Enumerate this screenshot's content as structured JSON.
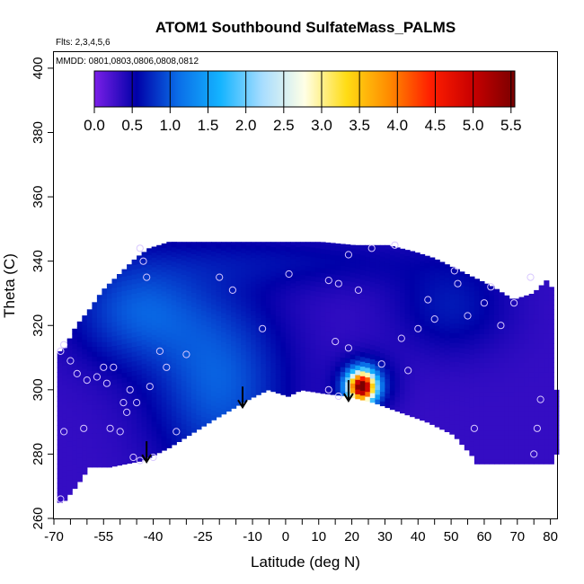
{
  "chart_data": {
    "type": "heatmap",
    "title": "ATOM1 Southbound SulfateMass_PALMS",
    "subtitle_flights": "Flts: 2,3,4,5,6",
    "subtitle_dates": "MMDD: 0801,0803,0806,0808,0812",
    "xlabel": "Latitude (deg N)",
    "ylabel": "Theta (C)",
    "xlim": [
      -70,
      82
    ],
    "ylim": [
      260,
      405
    ],
    "x_tick_labels": [
      "-70",
      "-55",
      "-40",
      "-25",
      "-10",
      "0",
      "10",
      "20",
      "30",
      "40",
      "50",
      "60",
      "70",
      "80"
    ],
    "x_tick_values": [
      -70,
      -55,
      -40,
      -25,
      -10,
      0,
      10,
      20,
      30,
      40,
      50,
      60,
      70,
      80
    ],
    "x_minor_ticks": [
      -65,
      -60,
      -50,
      -45,
      -35,
      -30,
      -20,
      -15,
      -5,
      5,
      15,
      25,
      35,
      45,
      55,
      65,
      75
    ],
    "y_ticks": [
      260,
      280,
      300,
      320,
      340,
      360,
      380,
      400
    ],
    "colorbar": {
      "ticks": [
        "0.0",
        "0.5",
        "1.0",
        "1.5",
        "2.0",
        "2.5",
        "3.0",
        "3.5",
        "4.0",
        "4.5",
        "5.0",
        "5.5"
      ],
      "range": [
        0,
        5.55
      ],
      "colors": [
        "#7b1fe8",
        "#0000a8",
        "#0a6ee8",
        "#14b4ff",
        "#a8ddff",
        "#ffffe6",
        "#ffdc14",
        "#ff8c00",
        "#ff1e00",
        "#c80000",
        "#7a0000"
      ]
    },
    "domain_top": [
      [
        -68,
        312
      ],
      [
        -64,
        320
      ],
      [
        -60,
        325
      ],
      [
        -56,
        331
      ],
      [
        -50,
        337
      ],
      [
        -46,
        341
      ],
      [
        -42,
        344
      ],
      [
        -36,
        346
      ],
      [
        -20,
        346
      ],
      [
        -10,
        346
      ],
      [
        0,
        346
      ],
      [
        10,
        346
      ],
      [
        20,
        345
      ],
      [
        30,
        345
      ],
      [
        38,
        343
      ],
      [
        44,
        341
      ],
      [
        50,
        338
      ],
      [
        56,
        335
      ],
      [
        62,
        332
      ],
      [
        68,
        328
      ],
      [
        74,
        330
      ],
      [
        78,
        334
      ],
      [
        80,
        332
      ],
      [
        80,
        300
      ],
      [
        82,
        297
      ],
      [
        81,
        280
      ],
      [
        80,
        277
      ],
      [
        66,
        277
      ],
      [
        58,
        277
      ],
      [
        57,
        275
      ],
      [
        56,
        275
      ]
    ],
    "domain_bottom": [
      [
        -68,
        265
      ],
      [
        -64,
        270
      ],
      [
        -60,
        276
      ],
      [
        -54,
        276
      ],
      [
        -44,
        278
      ],
      [
        -36,
        282
      ],
      [
        -22,
        291
      ],
      [
        -12,
        297
      ],
      [
        -6,
        300
      ],
      [
        0,
        298
      ],
      [
        4,
        300
      ],
      [
        10,
        299
      ],
      [
        18,
        298
      ],
      [
        26,
        296
      ],
      [
        34,
        293
      ],
      [
        42,
        290
      ],
      [
        50,
        286
      ],
      [
        56,
        279
      ],
      [
        56,
        275
      ]
    ],
    "anomalies": [
      {
        "x": -20,
        "y": 302,
        "sx": 14,
        "sy": 20,
        "a": 0.7,
        "note": "low"
      },
      {
        "x": -45,
        "y": 325,
        "sx": 14,
        "sy": 12,
        "a": 0.65,
        "note": "low"
      },
      {
        "x": 4,
        "y": 340,
        "sx": 30,
        "sy": 6,
        "a": 0.25,
        "note": "low"
      },
      {
        "x": 24,
        "y": 302,
        "sx": 6,
        "sy": 6,
        "a": 0.6,
        "note": "low"
      },
      {
        "x": 50,
        "y": 326,
        "sx": 12,
        "sy": 10,
        "a": 0.35,
        "note": "low"
      },
      {
        "x": 23,
        "y": 301,
        "sx": 2.8,
        "sy": 3.2,
        "a": 5.0,
        "note": "high"
      }
    ],
    "observations": [
      [
        -68,
        266
      ],
      [
        -67,
        287
      ],
      [
        -68,
        312
      ],
      [
        -67,
        314
      ],
      [
        -65,
        309
      ],
      [
        -63,
        305
      ],
      [
        -61,
        288
      ],
      [
        -60,
        303
      ],
      [
        -57,
        304
      ],
      [
        -55,
        307
      ],
      [
        -54,
        302
      ],
      [
        -53,
        288
      ],
      [
        -52,
        307
      ],
      [
        -50,
        287
      ],
      [
        -49,
        296
      ],
      [
        -48,
        293
      ],
      [
        -47,
        300
      ],
      [
        -46,
        279
      ],
      [
        -45,
        296
      ],
      [
        -44,
        278
      ],
      [
        -42,
        335
      ],
      [
        -41,
        301
      ],
      [
        -40,
        279
      ],
      [
        -38,
        312
      ],
      [
        -36,
        307
      ],
      [
        -33,
        287
      ],
      [
        -30,
        311
      ],
      [
        -20,
        335
      ],
      [
        -16,
        331
      ],
      [
        -7,
        319
      ],
      [
        1,
        336
      ],
      [
        13,
        334
      ],
      [
        15,
        315
      ],
      [
        16,
        333
      ],
      [
        19,
        342
      ],
      [
        19,
        313
      ],
      [
        22,
        331
      ],
      [
        26,
        344
      ],
      [
        29,
        308
      ],
      [
        33,
        345
      ],
      [
        35,
        316
      ],
      [
        37,
        306
      ],
      [
        40,
        319
      ],
      [
        43,
        328
      ],
      [
        45,
        322
      ],
      [
        51,
        337
      ],
      [
        52,
        333
      ],
      [
        55,
        323
      ],
      [
        57,
        288
      ],
      [
        60,
        327
      ],
      [
        62,
        332
      ],
      [
        65,
        320
      ],
      [
        69,
        327
      ],
      [
        74,
        335
      ],
      [
        75,
        280
      ],
      [
        76,
        288
      ],
      [
        77,
        297
      ],
      [
        -43,
        340
      ],
      [
        -44,
        344
      ],
      [
        13,
        300
      ],
      [
        16,
        298
      ]
    ],
    "arrows": [
      [
        -42,
        284
      ],
      [
        -13,
        301
      ],
      [
        19,
        303
      ]
    ]
  }
}
